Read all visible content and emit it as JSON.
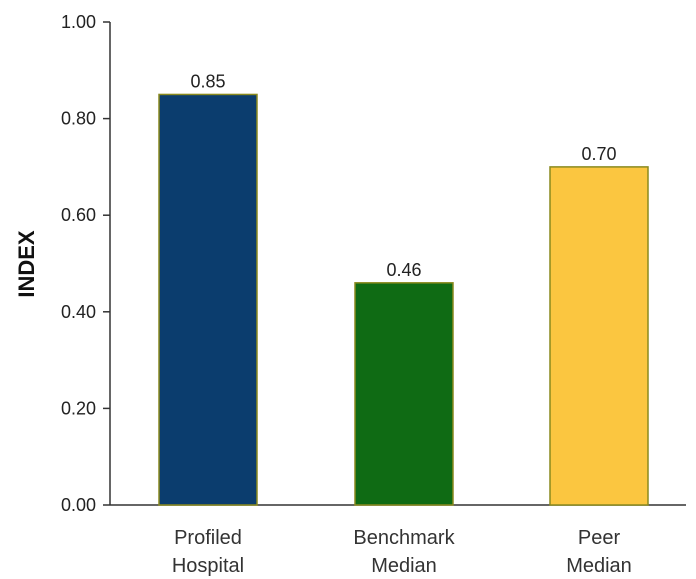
{
  "chart_data": {
    "type": "bar",
    "categories": [
      [
        "Profiled",
        "Hospital"
      ],
      [
        "Benchmark",
        "Median"
      ],
      [
        "Peer",
        "Median"
      ]
    ],
    "values": [
      0.85,
      0.46,
      0.7
    ],
    "value_labels": [
      "0.85",
      "0.46",
      "0.70"
    ],
    "bar_colors": [
      "#0b3d6e",
      "#0f6b14",
      "#fbc640"
    ],
    "bar_outline_color": "#8a8a1e",
    "ylabel": "INDEX",
    "ylim": [
      0,
      1.0
    ],
    "yticks": [
      "0.00",
      "0.20",
      "0.40",
      "0.60",
      "0.80",
      "1.00"
    ],
    "ytick_values": [
      0,
      0.2,
      0.4,
      0.6,
      0.8,
      1.0
    ],
    "grid": false
  }
}
